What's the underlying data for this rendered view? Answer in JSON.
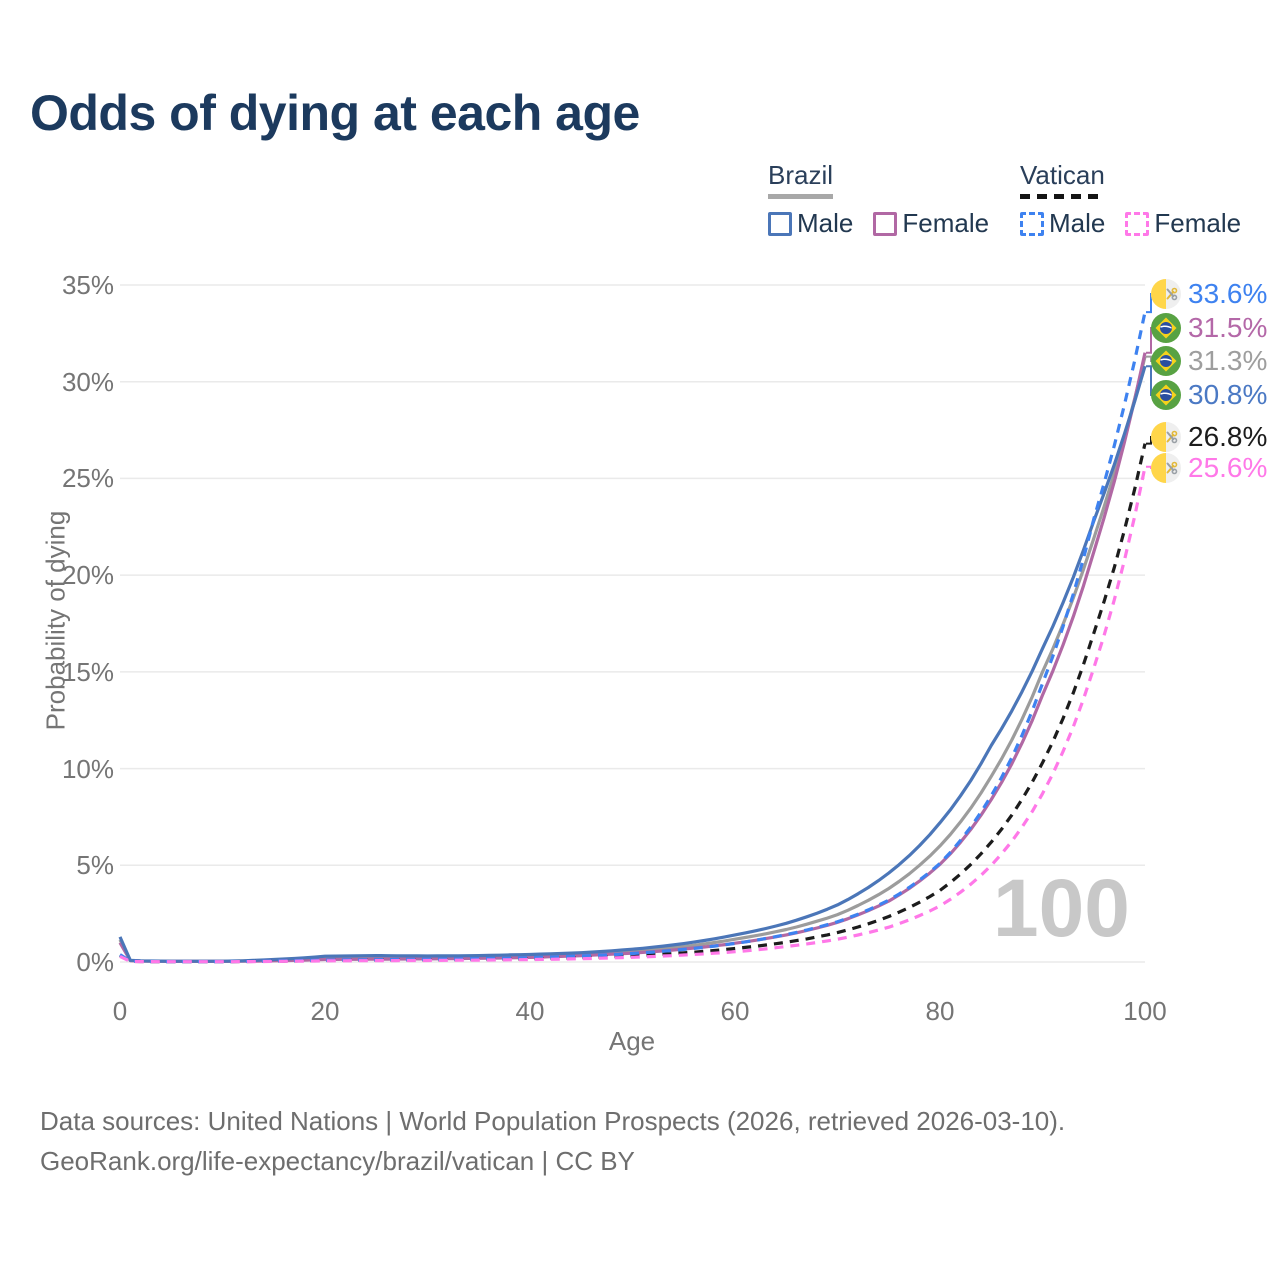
{
  "title": "Odds of dying at each age",
  "legend": {
    "groups": [
      {
        "name": "Brazil",
        "line_style": "solid",
        "line_color": "#a8a8a8",
        "items": [
          {
            "label": "Male",
            "box_color": "#4b76b8",
            "box_style": "solid"
          },
          {
            "label": "Female",
            "box_color": "#b168a4",
            "box_style": "solid"
          }
        ]
      },
      {
        "name": "Vatican",
        "line_style": "dashed",
        "line_color": "#141414",
        "items": [
          {
            "label": "Male",
            "box_color": "#3e82f0",
            "box_style": "dashed"
          },
          {
            "label": "Female",
            "box_color": "#ff78e8",
            "box_style": "dashed"
          }
        ]
      }
    ]
  },
  "y_axis": {
    "title": "Probability of dying",
    "ticks": [
      "0%",
      "5%",
      "10%",
      "15%",
      "20%",
      "25%",
      "30%",
      "35%"
    ]
  },
  "x_axis": {
    "title": "Age",
    "ticks": [
      0,
      20,
      40,
      60,
      80,
      100
    ]
  },
  "watermark": "100",
  "footer": {
    "line1": "Data sources: United Nations | World Population Prospects (2026, retrieved 2026-03-10).",
    "line2": "GeoRank.org/life-expectancy/brazil/vatican | CC BY"
  },
  "chart_data": {
    "type": "line",
    "title": "Odds of dying at each age",
    "xlabel": "Age",
    "ylabel": "Probability of dying",
    "unit": "%",
    "xlim": [
      0,
      100
    ],
    "ylim": [
      0,
      35
    ],
    "grid": "horizontal",
    "x": [
      0,
      1,
      2,
      5,
      10,
      15,
      20,
      25,
      30,
      35,
      40,
      45,
      50,
      55,
      60,
      65,
      70,
      75,
      80,
      85,
      90,
      95,
      100
    ],
    "series": [
      {
        "name": "Brazil total",
        "country": "Brazil",
        "sex": "total",
        "color": "#9c9c9c",
        "dash": "solid",
        "flag": "brazil",
        "end_value": 31.3,
        "end_label": "31.3%",
        "label_color": "#9e9e9e",
        "values": [
          1.15,
          0.08,
          0.05,
          0.035,
          0.035,
          0.1,
          0.22,
          0.24,
          0.23,
          0.26,
          0.31,
          0.4,
          0.55,
          0.8,
          1.18,
          1.68,
          2.45,
          3.8,
          6.0,
          9.6,
          15.0,
          21.9,
          31.3
        ]
      },
      {
        "name": "Brazil female",
        "country": "Brazil",
        "sex": "female",
        "color": "#b168a4",
        "dash": "solid",
        "flag": "brazil",
        "end_value": 31.5,
        "end_label": "31.5%",
        "label_color": "#b468a8",
        "values": [
          1.0,
          0.07,
          0.045,
          0.03,
          0.03,
          0.06,
          0.13,
          0.15,
          0.16,
          0.19,
          0.24,
          0.33,
          0.46,
          0.67,
          0.97,
          1.4,
          2.05,
          3.15,
          5.05,
          8.4,
          13.8,
          21.2,
          31.5
        ]
      },
      {
        "name": "Brazil male",
        "country": "Brazil",
        "sex": "male",
        "color": "#4b76b8",
        "dash": "solid",
        "flag": "brazil",
        "end_value": 30.8,
        "end_label": "30.8%",
        "label_color": "#4b79c4",
        "values": [
          1.3,
          0.09,
          0.06,
          0.04,
          0.04,
          0.13,
          0.3,
          0.33,
          0.31,
          0.33,
          0.39,
          0.48,
          0.66,
          0.95,
          1.4,
          2.0,
          2.95,
          4.6,
          7.2,
          11.2,
          16.2,
          22.8,
          30.8
        ]
      },
      {
        "name": "Vatican total",
        "country": "Vatican",
        "sex": "total",
        "color": "#1c1c1c",
        "dash": "dashed",
        "flag": "vatican",
        "end_value": 26.8,
        "end_label": "26.8%",
        "label_color": "#1c1c1c",
        "values": [
          0.33,
          0.035,
          0.025,
          0.018,
          0.018,
          0.04,
          0.08,
          0.095,
          0.105,
          0.125,
          0.16,
          0.22,
          0.32,
          0.47,
          0.7,
          1.02,
          1.52,
          2.35,
          3.7,
          6.2,
          10.3,
          17.0,
          26.8
        ]
      },
      {
        "name": "Vatican male",
        "country": "Vatican",
        "sex": "male",
        "color": "#3e82f0",
        "dash": "dashed",
        "flag": "vatican",
        "end_value": 33.6,
        "end_label": "33.6%",
        "label_color": "#3e82f0",
        "values": [
          0.38,
          0.04,
          0.03,
          0.02,
          0.02,
          0.05,
          0.1,
          0.12,
          0.14,
          0.17,
          0.22,
          0.31,
          0.44,
          0.65,
          0.96,
          1.42,
          2.08,
          3.2,
          5.1,
          8.6,
          14.4,
          22.9,
          33.6
        ]
      },
      {
        "name": "Vatican female",
        "country": "Vatican",
        "sex": "female",
        "color": "#ff78e8",
        "dash": "dashed",
        "flag": "vatican",
        "end_value": 25.6,
        "end_label": "25.6%",
        "label_color": "#ff78e8",
        "values": [
          0.29,
          0.03,
          0.02,
          0.015,
          0.015,
          0.03,
          0.06,
          0.07,
          0.08,
          0.1,
          0.125,
          0.17,
          0.245,
          0.36,
          0.53,
          0.8,
          1.18,
          1.8,
          2.9,
          5.0,
          8.7,
          15.2,
          25.6
        ]
      }
    ]
  }
}
